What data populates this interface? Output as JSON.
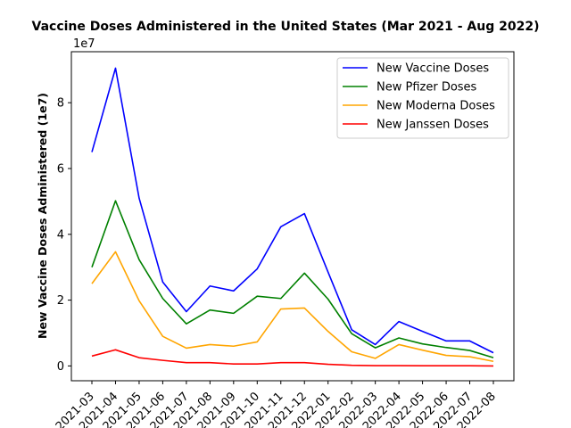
{
  "chart_data": {
    "type": "line",
    "title": "Vaccine Doses Administered in the United States (Mar 2021 - Aug 2022)",
    "xlabel": "",
    "ylabel": "New Vaccine Doses Administered (1e7)",
    "y_offset_text": "1e7",
    "categories": [
      "2021-03",
      "2021-04",
      "2021-05",
      "2021-06",
      "2021-07",
      "2021-08",
      "2021-09",
      "2021-10",
      "2021-11",
      "2021-12",
      "2022-01",
      "2022-02",
      "2022-03",
      "2022-04",
      "2022-05",
      "2022-06",
      "2022-07",
      "2022-08"
    ],
    "yticks": [
      0,
      2,
      4,
      6,
      8
    ],
    "ylim": [
      -0.45,
      9.55
    ],
    "grid": false,
    "legend_position": "upper right",
    "series": [
      {
        "name": "New Vaccine Doses",
        "color": "#0000ff",
        "values": [
          6.5,
          9.05,
          5.1,
          2.55,
          1.65,
          2.43,
          2.28,
          2.95,
          4.23,
          4.63,
          2.85,
          1.1,
          0.65,
          1.35,
          1.05,
          0.76,
          0.76,
          0.4
        ]
      },
      {
        "name": "New Pfizer Doses",
        "color": "#008000",
        "values": [
          3.0,
          5.02,
          3.23,
          2.05,
          1.28,
          1.7,
          1.6,
          2.12,
          2.05,
          2.82,
          2.03,
          0.98,
          0.55,
          0.85,
          0.67,
          0.56,
          0.47,
          0.25
        ]
      },
      {
        "name": "New Moderna Doses",
        "color": "#ffa500",
        "values": [
          2.5,
          3.47,
          1.98,
          0.9,
          0.54,
          0.65,
          0.6,
          0.73,
          1.73,
          1.76,
          1.05,
          0.43,
          0.23,
          0.65,
          0.48,
          0.32,
          0.28,
          0.14
        ]
      },
      {
        "name": "New Janssen Doses",
        "color": "#ff0000",
        "values": [
          0.3,
          0.49,
          0.25,
          0.17,
          0.1,
          0.1,
          0.06,
          0.06,
          0.1,
          0.1,
          0.05,
          0.02,
          0.01,
          0.01,
          0.005,
          0.005,
          0.005,
          0.0
        ]
      }
    ]
  }
}
